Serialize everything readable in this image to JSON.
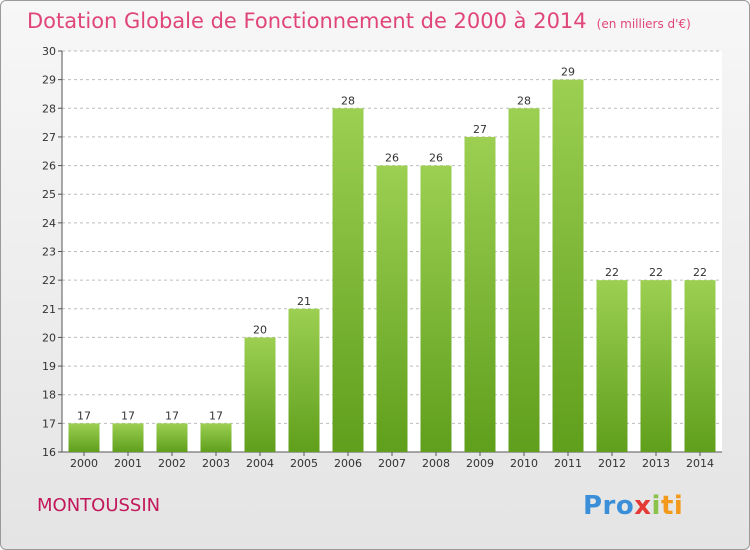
{
  "chart_data": {
    "type": "bar",
    "title": "Dotation Globale de Fonctionnement de 2000 à 2014",
    "subtitle": "(en milliers d'€)",
    "categories": [
      "2000",
      "2001",
      "2002",
      "2003",
      "2004",
      "2005",
      "2006",
      "2007",
      "2008",
      "2009",
      "2010",
      "2011",
      "2012",
      "2013",
      "2014"
    ],
    "values": [
      17,
      17,
      17,
      17,
      20,
      21,
      28,
      26,
      26,
      27,
      28,
      29,
      22,
      22,
      22
    ],
    "ylim": [
      16,
      30
    ],
    "yticks": [
      16,
      17,
      18,
      19,
      20,
      21,
      22,
      23,
      24,
      25,
      26,
      27,
      28,
      29,
      30
    ],
    "bar_color_top": "#9ccf52",
    "bar_color_bottom": "#5f9f1c",
    "grid": true
  },
  "footer": {
    "place": "MONTOUSSIN",
    "logo": {
      "p1": "Pro",
      "p2": "x",
      "p3": "i",
      "p4": "ti"
    }
  }
}
